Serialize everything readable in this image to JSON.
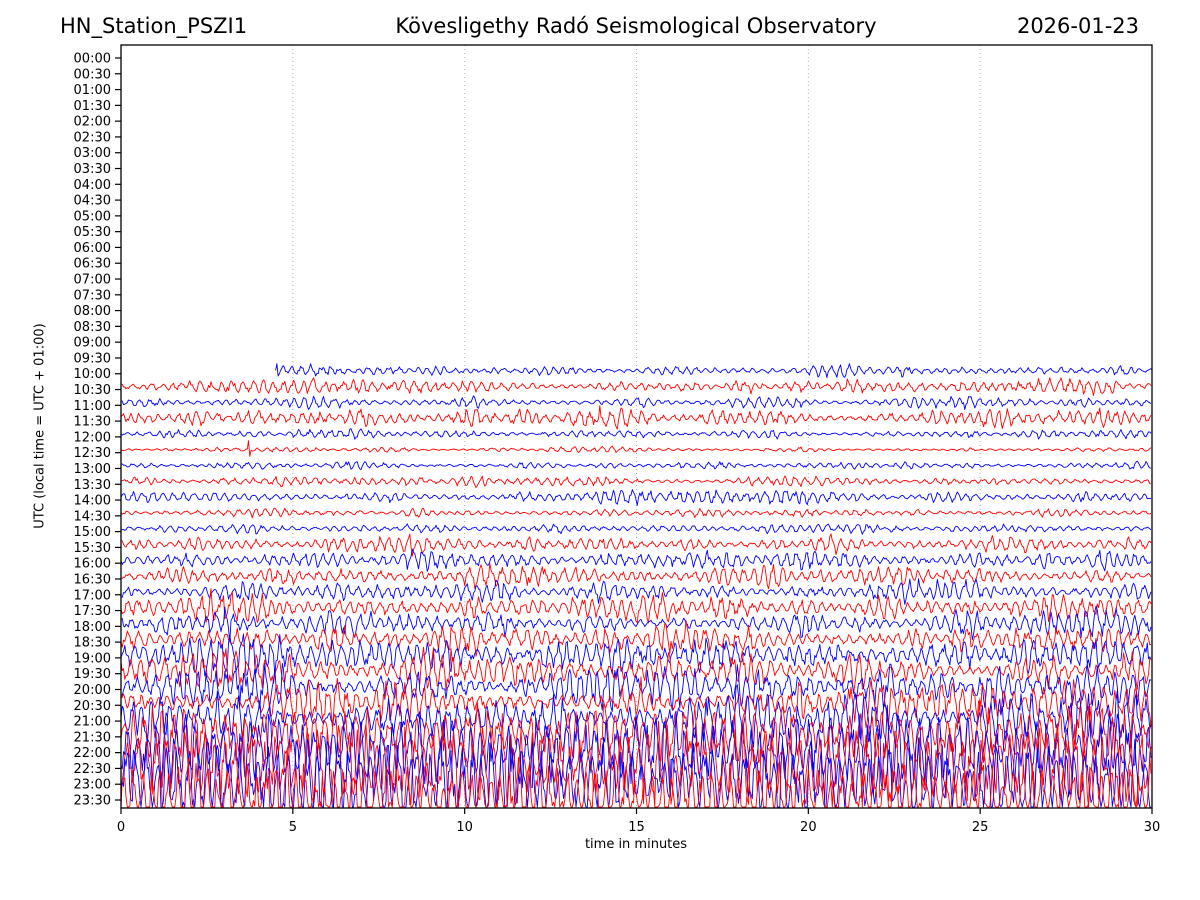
{
  "header": {
    "station": "HN_Station_PSZI1",
    "observatory": "Kövesligethy Radó Seismological Observatory",
    "date": "2026-01-23"
  },
  "chart_data": {
    "type": "line",
    "subtype": "helicorder-day-plot",
    "title_left": "HN_Station_PSZI1",
    "title_center": "Kövesligethy Radó Seismological Observatory",
    "title_right": "2026-01-23",
    "xlabel": "time in minutes",
    "ylabel": "UTC (local time = UTC + 01:00)",
    "xlim": [
      0,
      30
    ],
    "x_ticks": [
      0,
      5,
      10,
      15,
      20,
      25,
      30
    ],
    "row_interval_minutes": 30,
    "grid": {
      "vertical_dotted_at": [
        5,
        10,
        15,
        20,
        25
      ],
      "color": "#b0b0b0"
    },
    "trace_colors": {
      "blue": "#0000ff",
      "red": "#ff0000"
    },
    "frame_color": "#000000",
    "note": "Rows 00:00-09:30 contain no data; recording starts ~minute 4.5 of the 10:00 row; background noise amplitude (amp, px half-height) grows toward 23:30 where traces overlap heavily.",
    "rows": [
      {
        "label": "00:00",
        "color": "blue",
        "amp": 0
      },
      {
        "label": "00:30",
        "color": "red",
        "amp": 0
      },
      {
        "label": "01:00",
        "color": "blue",
        "amp": 0
      },
      {
        "label": "01:30",
        "color": "red",
        "amp": 0
      },
      {
        "label": "02:00",
        "color": "blue",
        "amp": 0
      },
      {
        "label": "02:30",
        "color": "red",
        "amp": 0
      },
      {
        "label": "03:00",
        "color": "blue",
        "amp": 0
      },
      {
        "label": "03:30",
        "color": "red",
        "amp": 0
      },
      {
        "label": "04:00",
        "color": "blue",
        "amp": 0
      },
      {
        "label": "04:30",
        "color": "red",
        "amp": 0
      },
      {
        "label": "05:00",
        "color": "blue",
        "amp": 0
      },
      {
        "label": "05:30",
        "color": "red",
        "amp": 0
      },
      {
        "label": "06:00",
        "color": "blue",
        "amp": 0
      },
      {
        "label": "06:30",
        "color": "red",
        "amp": 0
      },
      {
        "label": "07:00",
        "color": "blue",
        "amp": 0
      },
      {
        "label": "07:30",
        "color": "red",
        "amp": 0
      },
      {
        "label": "08:00",
        "color": "blue",
        "amp": 0
      },
      {
        "label": "08:30",
        "color": "red",
        "amp": 0
      },
      {
        "label": "09:00",
        "color": "blue",
        "amp": 0
      },
      {
        "label": "09:30",
        "color": "red",
        "amp": 0
      },
      {
        "label": "10:00",
        "color": "blue",
        "amp": 3.5,
        "start_min": 4.5,
        "spike": {
          "min": 4.55,
          "h": 7
        }
      },
      {
        "label": "10:30",
        "color": "red",
        "amp": 4
      },
      {
        "label": "11:00",
        "color": "blue",
        "amp": 3
      },
      {
        "label": "11:30",
        "color": "red",
        "amp": 5.5
      },
      {
        "label": "12:00",
        "color": "blue",
        "amp": 2.4
      },
      {
        "label": "12:30",
        "color": "red",
        "amp": 1.6,
        "spike": {
          "min": 3.7,
          "h": 9
        }
      },
      {
        "label": "13:00",
        "color": "blue",
        "amp": 2.2
      },
      {
        "label": "13:30",
        "color": "red",
        "amp": 3.2
      },
      {
        "label": "14:00",
        "color": "blue",
        "amp": 4
      },
      {
        "label": "14:30",
        "color": "red",
        "amp": 2.6
      },
      {
        "label": "15:00",
        "color": "blue",
        "amp": 2.8
      },
      {
        "label": "15:30",
        "color": "red",
        "amp": 5
      },
      {
        "label": "16:00",
        "color": "blue",
        "amp": 6
      },
      {
        "label": "16:30",
        "color": "red",
        "amp": 6
      },
      {
        "label": "17:00",
        "color": "blue",
        "amp": 6.5
      },
      {
        "label": "17:30",
        "color": "red",
        "amp": 8
      },
      {
        "label": "18:00",
        "color": "blue",
        "amp": 7.5
      },
      {
        "label": "18:30",
        "color": "red",
        "amp": 9
      },
      {
        "label": "19:00",
        "color": "blue",
        "amp": 10
      },
      {
        "label": "19:30",
        "color": "red",
        "amp": 11
      },
      {
        "label": "20:00",
        "color": "blue",
        "amp": 12
      },
      {
        "label": "20:30",
        "color": "red",
        "amp": 13
      },
      {
        "label": "21:00",
        "color": "blue",
        "amp": 15
      },
      {
        "label": "21:30",
        "color": "red",
        "amp": 21
      },
      {
        "label": "22:00",
        "color": "blue",
        "amp": 27
      },
      {
        "label": "22:30",
        "color": "red",
        "amp": 31
      },
      {
        "label": "23:00",
        "color": "blue",
        "amp": 31
      },
      {
        "label": "23:30",
        "color": "red",
        "amp": 31
      }
    ]
  }
}
